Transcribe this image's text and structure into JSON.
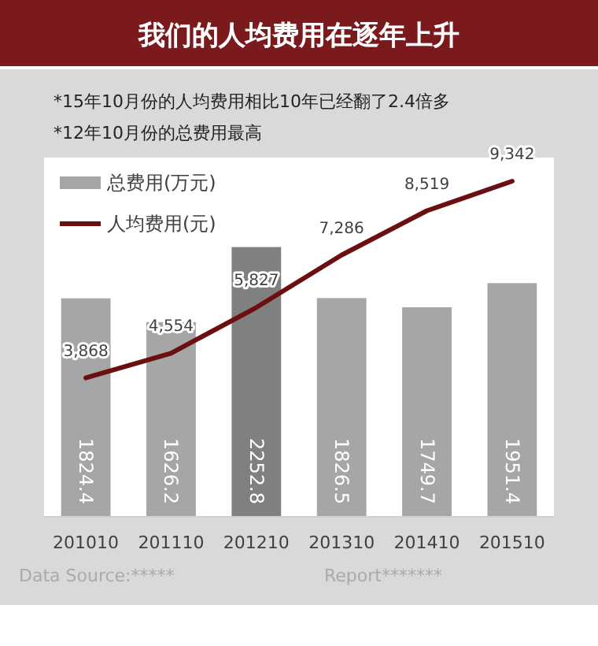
{
  "chart_data": {
    "type": "bar",
    "title": "我们的人均费用在逐年上升",
    "subtitle": "*15年10月份的人均费用相比10年已经翻了2.4倍多\n*12年10月份的总费用最高",
    "categories": [
      "201010",
      "201110",
      "201210",
      "201310",
      "201410",
      "201510"
    ],
    "series": [
      {
        "name": "总费用(万元)",
        "color": "#a6a6a6",
        "colors": [
          "#a6a6a6",
          "#a6a6a6",
          "#808080",
          "#a6a6a6",
          "#a6a6a6",
          "#a6a6a6"
        ],
        "values": [
          1824.4,
          1626.2,
          2252.8,
          1826.5,
          1749.7,
          1951.4
        ]
      },
      {
        "name": "人均费用(元)",
        "type": "line",
        "axis": "y2",
        "color": "#6b0f10",
        "values": [
          3868,
          4554,
          5827,
          7286,
          8519,
          9342
        ],
        "value_labels": [
          "3,868",
          "4,554",
          "5,827",
          "7,286",
          "8,519",
          "9,342"
        ]
      }
    ],
    "ylim": [
      0,
      3000
    ],
    "y2lim": [
      0,
      10000
    ],
    "tick_labels": "x",
    "legend": "top left",
    "data_labels": true,
    "marker": "none",
    "line_style": "solid",
    "annotations": [
      "Data Source:*****",
      "Report*******"
    ]
  }
}
